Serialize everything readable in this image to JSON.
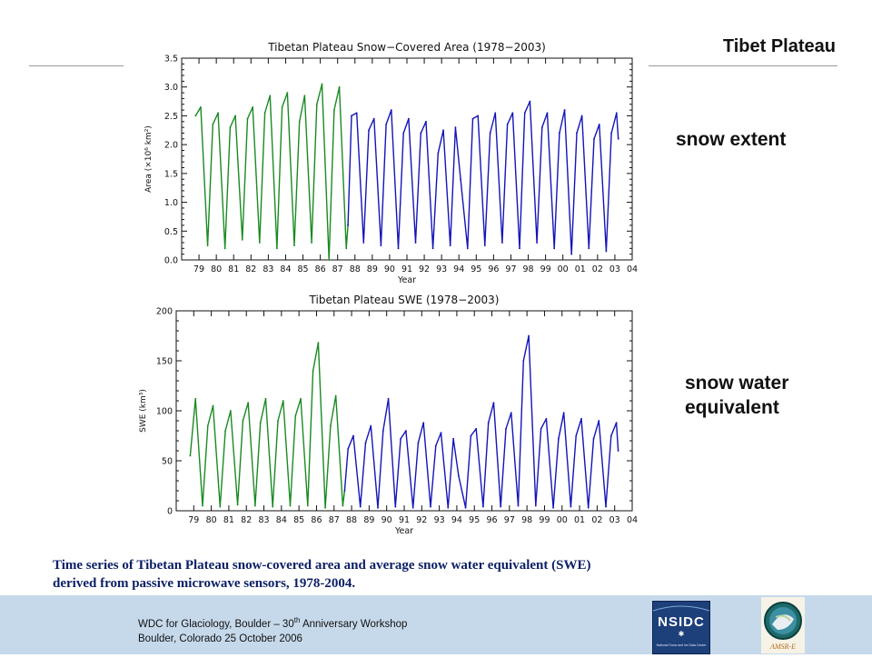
{
  "slide": {
    "title": "Tibet Plateau",
    "label_extent": "snow extent",
    "label_swe_line1": "snow water",
    "label_swe_line2": "equivalent",
    "caption_line1": "Time series of Tibetan Plateau snow-covered area and average snow water equivalent (SWE)",
    "caption_line2": "derived from passive microwave sensors, 1978-2004."
  },
  "footer": {
    "line1_pre": "WDC for Glaciology, Boulder – 30",
    "line1_sup": "th",
    "line1_post": " Anniversary Workshop",
    "line2": "Boulder, Colorado 25 October 2006",
    "logo_text": "NSIDC",
    "logo_subtext": "National Snow and Ice Data Center",
    "logo2_text": "AMSR-E"
  },
  "colors": {
    "smmr_series": "#1a8a22",
    "ssmi_series": "#1414b8",
    "footer_bg": "#c6d9eb",
    "caption_text": "#0b1f66"
  },
  "chart_data": [
    {
      "type": "line",
      "title": "Tibetan Plateau Snow−Covered Area (1978−2003)",
      "xlabel": "Year",
      "ylabel": "Area (×10⁶ km²)",
      "xlim": [
        1978,
        2004
      ],
      "ylim": [
        0,
        3.5
      ],
      "yticks": [
        0.0,
        0.5,
        1.0,
        1.5,
        2.0,
        2.5,
        3.0,
        3.5
      ],
      "ytick_labels": [
        "0.0",
        "0.5",
        "1.0",
        "1.5",
        "2.0",
        "2.5",
        "3.0",
        "3.5"
      ],
      "xtick_labels": [
        "79",
        "80",
        "81",
        "82",
        "83",
        "84",
        "85",
        "86",
        "87",
        "88",
        "89",
        "90",
        "91",
        "92",
        "93",
        "94",
        "95",
        "96",
        "97",
        "98",
        "99",
        "00",
        "01",
        "02",
        "03",
        "04"
      ],
      "grid": false,
      "series": [
        {
          "color": "#1a8a22",
          "x": [
            1978.8,
            1979.1,
            1979.5,
            1979.8,
            1980.1,
            1980.5,
            1980.8,
            1981.1,
            1981.5,
            1981.8,
            1982.1,
            1982.5,
            1982.8,
            1983.1,
            1983.5,
            1983.8,
            1984.1,
            1984.5,
            1984.8,
            1985.1,
            1985.5,
            1985.8,
            1986.1,
            1986.5,
            1986.8,
            1987.1,
            1987.5,
            1987.6
          ],
          "y": [
            2.5,
            2.65,
            0.25,
            2.35,
            2.55,
            0.2,
            2.3,
            2.5,
            0.35,
            2.45,
            2.65,
            0.3,
            2.55,
            2.85,
            0.2,
            2.65,
            2.9,
            0.25,
            2.4,
            2.85,
            0.3,
            2.7,
            3.05,
            0.0,
            2.6,
            3.0,
            0.2,
            0.6
          ]
        },
        {
          "color": "#1414b8",
          "x": [
            1987.6,
            1987.8,
            1988.1,
            1988.5,
            1988.8,
            1989.1,
            1989.5,
            1989.8,
            1990.1,
            1990.5,
            1990.8,
            1991.1,
            1991.5,
            1991.8,
            1992.1,
            1992.5,
            1992.8,
            1993.1,
            1993.5,
            1993.8,
            1994.1,
            1994.5,
            1994.8,
            1995.1,
            1995.5,
            1995.8,
            1996.1,
            1996.5,
            1996.8,
            1997.1,
            1997.5,
            1997.8,
            1998.1,
            1998.5,
            1998.8,
            1999.1,
            1999.5,
            1999.8,
            2000.1,
            2000.5,
            2000.8,
            2001.1,
            2001.5,
            2001.8,
            2002.1,
            2002.5,
            2002.8,
            2003.1,
            2003.2
          ],
          "y": [
            0.6,
            2.5,
            2.55,
            0.3,
            2.25,
            2.45,
            0.25,
            2.35,
            2.6,
            0.2,
            2.2,
            2.45,
            0.3,
            2.2,
            2.4,
            0.2,
            1.85,
            2.25,
            0.25,
            2.3,
            1.4,
            0.2,
            2.45,
            2.5,
            0.25,
            2.2,
            2.55,
            0.3,
            2.35,
            2.55,
            0.2,
            2.55,
            2.75,
            0.3,
            2.3,
            2.55,
            0.2,
            2.2,
            2.6,
            0.1,
            2.2,
            2.5,
            0.2,
            2.1,
            2.35,
            0.15,
            2.2,
            2.55,
            2.1
          ]
        }
      ]
    },
    {
      "type": "line",
      "title": "Tibetan Plateau SWE (1978−2003)",
      "xlabel": "Year",
      "ylabel": "SWE (km³)",
      "xlim": [
        1978,
        2004
      ],
      "ylim": [
        0,
        200
      ],
      "yticks": [
        0,
        50,
        100,
        150,
        200
      ],
      "ytick_labels": [
        "0",
        "50",
        "100",
        "150",
        "200"
      ],
      "xtick_labels": [
        "79",
        "80",
        "81",
        "82",
        "83",
        "84",
        "85",
        "86",
        "87",
        "88",
        "89",
        "90",
        "91",
        "92",
        "93",
        "94",
        "95",
        "96",
        "97",
        "98",
        "99",
        "00",
        "01",
        "02",
        "03",
        "04"
      ],
      "grid": false,
      "series": [
        {
          "color": "#1a8a22",
          "x": [
            1978.8,
            1979.1,
            1979.5,
            1979.8,
            1980.1,
            1980.5,
            1980.8,
            1981.1,
            1981.5,
            1981.8,
            1982.1,
            1982.5,
            1982.8,
            1983.1,
            1983.5,
            1983.8,
            1984.1,
            1984.5,
            1984.8,
            1985.1,
            1985.5,
            1985.8,
            1986.1,
            1986.5,
            1986.8,
            1987.1,
            1987.5,
            1987.6
          ],
          "y": [
            55,
            112,
            5,
            85,
            105,
            4,
            80,
            100,
            6,
            90,
            108,
            5,
            88,
            112,
            4,
            90,
            110,
            5,
            95,
            112,
            5,
            140,
            168,
            3,
            85,
            115,
            5,
            20
          ]
        },
        {
          "color": "#1414b8",
          "x": [
            1987.6,
            1987.8,
            1988.1,
            1988.5,
            1988.8,
            1989.1,
            1989.5,
            1989.8,
            1990.1,
            1990.5,
            1990.8,
            1991.1,
            1991.5,
            1991.8,
            1992.1,
            1992.5,
            1992.8,
            1993.1,
            1993.5,
            1993.8,
            1994.1,
            1994.5,
            1994.8,
            1995.1,
            1995.5,
            1995.8,
            1996.1,
            1996.5,
            1996.8,
            1997.1,
            1997.5,
            1997.8,
            1998.1,
            1998.5,
            1998.8,
            1999.1,
            1999.5,
            1999.8,
            2000.1,
            2000.5,
            2000.8,
            2001.1,
            2001.5,
            2001.8,
            2002.1,
            2002.5,
            2002.8,
            2003.1,
            2003.2
          ],
          "y": [
            20,
            62,
            75,
            4,
            68,
            85,
            3,
            80,
            112,
            4,
            72,
            80,
            3,
            68,
            88,
            4,
            65,
            78,
            3,
            72,
            35,
            3,
            75,
            82,
            4,
            88,
            108,
            4,
            82,
            98,
            5,
            150,
            175,
            5,
            82,
            92,
            3,
            72,
            98,
            4,
            75,
            92,
            3,
            72,
            90,
            4,
            75,
            88,
            60
          ]
        }
      ]
    }
  ]
}
